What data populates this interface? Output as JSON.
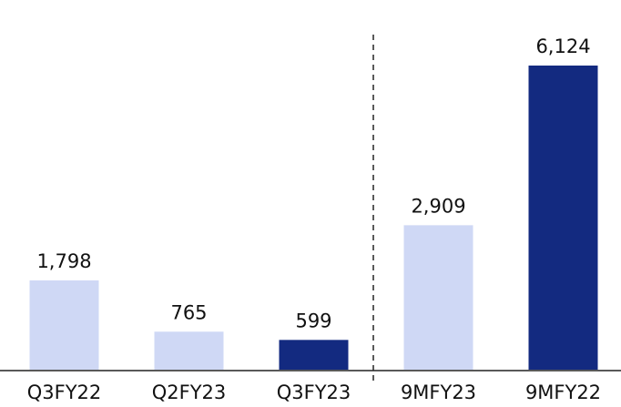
{
  "chart_data": {
    "type": "bar",
    "categories": [
      "Q3FY22",
      "Q2FY23",
      "Q3FY23",
      "9MFY23",
      "9MFY22"
    ],
    "values": [
      1798,
      765,
      599,
      2909,
      6124
    ],
    "value_labels": [
      "1,798",
      "765",
      "599",
      "2,909",
      "6,124"
    ],
    "colors": [
      "#cfd8f5",
      "#cfd8f5",
      "#132a80",
      "#cfd8f5",
      "#132a80"
    ]
  }
}
